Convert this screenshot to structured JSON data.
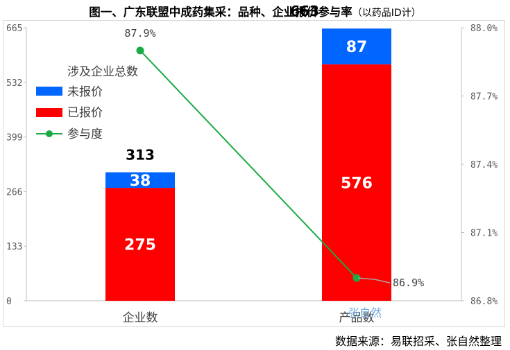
{
  "title": "图一、广东联盟中成药集采：品种、企业报价参与率",
  "title_note": "（以药品ID计）",
  "source": "数据来源：易联招采、张自然整理",
  "watermark": "张自然",
  "colors": {
    "unquoted": "#0066ff",
    "quoted": "#ff0000",
    "participation": "#1aaa44",
    "leader": "#a6a6a6"
  },
  "chart_data": {
    "type": "bar",
    "stacked": true,
    "categories": [
      "企业数",
      "产品数"
    ],
    "legend_title": "涉及企业总数",
    "legend_position": "top-left",
    "grid": false,
    "series": [
      {
        "name": "已报价",
        "values": [
          275,
          576
        ],
        "axis": "left"
      },
      {
        "name": "未报价",
        "values": [
          38,
          87
        ],
        "axis": "left"
      }
    ],
    "totals": [
      313,
      663
    ],
    "total_labels": [
      "313",
      "663"
    ],
    "quoted_labels": [
      "275",
      "576"
    ],
    "unquoted_labels": [
      "38",
      "87"
    ],
    "line": {
      "name": "参与度",
      "type": "line",
      "values": [
        87.9,
        86.9
      ],
      "labels": [
        "87.9%",
        "86.9%"
      ],
      "axis": "right"
    },
    "y_left": {
      "ylim": [
        0,
        665
      ],
      "ticks": [
        "0",
        "133",
        "266",
        "399",
        "532",
        "665"
      ]
    },
    "y_right": {
      "ylim": [
        86.8,
        88.0
      ],
      "ticks": [
        "86.8%",
        "87.1%",
        "87.4%",
        "87.7%",
        "88.0%"
      ]
    }
  }
}
